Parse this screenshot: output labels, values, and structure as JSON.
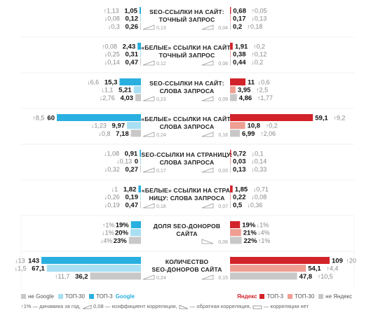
{
  "colors": {
    "google_top3": "#2ab0e0",
    "google_top30": "#a8dff2",
    "google_not": "#c8c8c8",
    "yandex_top3": "#d2232a",
    "yandex_top30": "#ef9e92",
    "yandex_not": "#c8c8c8",
    "up": "#888888",
    "down": "#888888"
  },
  "chart_data": {
    "type": "bar",
    "layout": "mirrored-horizontal",
    "engines": [
      "Google",
      "Яндекс"
    ],
    "series": [
      "ТОП-3",
      "ТОП-30",
      "не Google / не Яндекс"
    ],
    "groups": [
      {
        "label": "SEO-ССЫЛКИ НА САЙТ:\nТОЧНЫЙ ЗАПРОС",
        "google": [
          {
            "value": 1.05,
            "value_label": "1,05",
            "delta": "1,13",
            "dir": "up"
          },
          {
            "value": 0.12,
            "value_label": "0,12",
            "delta": "0,08",
            "dir": "down"
          },
          {
            "value": 0.26,
            "value_label": "0,26",
            "delta": "0,3",
            "dir": "down"
          }
        ],
        "yandex": [
          {
            "value": 0.68,
            "value_label": "0,68",
            "delta": "0,05",
            "dir": "up"
          },
          {
            "value": 0.17,
            "value_label": "0,17",
            "delta": "0,13",
            "dir": "down"
          },
          {
            "value": 0.2,
            "value_label": "0,2",
            "delta": "0,18",
            "dir": "up"
          }
        ],
        "corr_google": "0,13",
        "corr_yandex": "0,04",
        "icon_google": "positive",
        "icon_yandex": "positive"
      },
      {
        "label": "«БЕЛЫЕ» ССЫЛКИ НА САЙТ:\nТОЧНЫЙ ЗАПРОС",
        "google": [
          {
            "value": 2.43,
            "value_label": "2,43",
            "delta": "0,08",
            "dir": "up"
          },
          {
            "value": 0.31,
            "value_label": "0,31",
            "delta": "0,25",
            "dir": "down"
          },
          {
            "value": 0.47,
            "value_label": "0,47",
            "delta": "0,14",
            "dir": "down"
          }
        ],
        "yandex": [
          {
            "value": 1.91,
            "value_label": "1,91",
            "delta": "0,2",
            "dir": "up"
          },
          {
            "value": 0.38,
            "value_label": "0,38",
            "delta": "0,12",
            "dir": "up"
          },
          {
            "value": 0.44,
            "value_label": "0,44",
            "delta": "0,2",
            "dir": "down"
          }
        ],
        "corr_google": "0,12",
        "corr_yandex": "0,08",
        "icon_google": "positive",
        "icon_yandex": "positive"
      },
      {
        "label": "SEO-ССЫЛКИ НА САЙТ:\nСЛОВА ЗАПРОСА",
        "google": [
          {
            "value": 15.3,
            "value_label": "15,3",
            "delta": "6,6",
            "dir": "down"
          },
          {
            "value": 5.21,
            "value_label": "5,21",
            "delta": "1,1",
            "dir": "down"
          },
          {
            "value": 4.03,
            "value_label": "4,03",
            "delta": "2,76",
            "dir": "down"
          }
        ],
        "yandex": [
          {
            "value": 11,
            "value_label": "11",
            "delta": "0,6",
            "dir": "down"
          },
          {
            "value": 3.95,
            "value_label": "3,95",
            "delta": "2,5",
            "dir": "up"
          },
          {
            "value": 4.86,
            "value_label": "4,86",
            "delta": "1,77",
            "dir": "up"
          }
        ],
        "corr_google": "0,23",
        "corr_yandex": "0,09",
        "icon_google": "positive",
        "icon_yandex": "positive"
      },
      {
        "label": "«БЕЛЫЕ» ССЫЛКИ НА САЙТ:\nСЛОВА ЗАПРОСА",
        "google": [
          {
            "value": 60,
            "value_label": "60",
            "delta": "8,5",
            "dir": "up"
          },
          {
            "value": 9.97,
            "value_label": "9,97",
            "delta": "1,23",
            "dir": "down"
          },
          {
            "value": 7.18,
            "value_label": "7,18",
            "delta": "0,8",
            "dir": "down"
          }
        ],
        "yandex": [
          {
            "value": 59.1,
            "value_label": "59,1",
            "delta": "9,2",
            "dir": "up"
          },
          {
            "value": 10.8,
            "value_label": "10,8",
            "delta": "0,2",
            "dir": "up"
          },
          {
            "value": 6.99,
            "value_label": "6,99",
            "delta": "2,06",
            "dir": "up"
          }
        ],
        "corr_google": "0,24",
        "corr_yandex": "0,16",
        "icon_google": "positive",
        "icon_yandex": "positive"
      },
      {
        "label": "SEO-ССЫЛКИ НА СТРАНИЦУ:\nСЛОВА ЗАПРОСА",
        "google": [
          {
            "value": 0.91,
            "value_label": "0,91",
            "delta": "1,08",
            "dir": "down"
          },
          {
            "value": 0,
            "value_label": "0",
            "delta": "0,13",
            "dir": "down"
          },
          {
            "value": 0.27,
            "value_label": "0,27",
            "delta": "0,32",
            "dir": "down"
          }
        ],
        "yandex": [
          {
            "value": 0.72,
            "value_label": "0,72",
            "delta": "0,1",
            "dir": "down"
          },
          {
            "value": 0.03,
            "value_label": "0,03",
            "delta": "0,14",
            "dir": "down"
          },
          {
            "value": 0.13,
            "value_label": "0,13",
            "delta": "0,33",
            "dir": "down"
          }
        ],
        "corr_google": "0,17",
        "corr_yandex": "0,03",
        "icon_google": "positive",
        "icon_yandex": "positive"
      },
      {
        "label": "«БЕЛЫЕ» ССЫЛКИ НА СТРА-\nНИЦУ: СЛОВА ЗАПРОСА",
        "google": [
          {
            "value": 1.82,
            "value_label": "1,82",
            "delta": "1",
            "dir": "down"
          },
          {
            "value": 0.19,
            "value_label": "0,19",
            "delta": "0,26",
            "dir": "down"
          },
          {
            "value": 0.47,
            "value_label": "0,47",
            "delta": "0,19",
            "dir": "down"
          }
        ],
        "yandex": [
          {
            "value": 1.85,
            "value_label": "1,85",
            "delta": "0,71",
            "dir": "down"
          },
          {
            "value": 0.22,
            "value_label": "0,22",
            "delta": "0,08",
            "dir": "down"
          },
          {
            "value": 0.5,
            "value_label": "0,5",
            "delta": "0,36",
            "dir": "down"
          }
        ],
        "corr_google": "0,18",
        "corr_yandex": "0,07",
        "icon_google": "positive",
        "icon_yandex": "positive"
      },
      {
        "label": "ДОЛЯ SEO-ДОНОРОВ\nСАЙТА",
        "google": [
          {
            "value": 19,
            "value_label": "19%",
            "delta": "1%",
            "dir": "up"
          },
          {
            "value": 20,
            "value_label": "20%",
            "delta": "1%",
            "dir": "down"
          },
          {
            "value": 23,
            "value_label": "23%",
            "delta": "4%",
            "dir": "down"
          }
        ],
        "yandex": [
          {
            "value": 19,
            "value_label": "19%",
            "delta": "1%",
            "dir": "down"
          },
          {
            "value": 21,
            "value_label": "21%",
            "delta": "4%",
            "dir": "down"
          },
          {
            "value": 22,
            "value_label": "22%",
            "delta": "1%",
            "dir": "up"
          }
        ],
        "corr_google": "",
        "corr_yandex": "0,06",
        "icon_google": "none",
        "icon_yandex": "negative"
      },
      {
        "label": "КОЛИЧЕСТВО\nSEO-ДОНОРОВ САЙТА",
        "google": [
          {
            "value": 143,
            "value_label": "143",
            "delta": "13",
            "dir": "down"
          },
          {
            "value": 67.1,
            "value_label": "67,1",
            "delta": "1,5",
            "dir": "down"
          },
          {
            "value": 36.2,
            "value_label": "36,2",
            "delta": "11,7",
            "dir": "up"
          }
        ],
        "yandex": [
          {
            "value": 109,
            "value_label": "109",
            "delta": "20",
            "dir": "up"
          },
          {
            "value": 54.1,
            "value_label": "54,1",
            "delta": "4,4",
            "dir": "up"
          },
          {
            "value": 47.8,
            "value_label": "47,8",
            "delta": "10,5",
            "dir": "up"
          }
        ],
        "corr_google": "0,24",
        "corr_yandex": "0,15",
        "icon_google": "positive",
        "icon_yandex": "positive"
      }
    ]
  },
  "legend": {
    "google_not": "не Google",
    "top30": "ТОП-30",
    "top3": "ТОП-3",
    "google": "Google",
    "yandex": "Яндекс",
    "yandex_not": "не Яндекс"
  },
  "footnote": {
    "delta_example": "↑1%",
    "delta_text": " — динамика за год, ",
    "corr_example": "0,08",
    "corr_text": " — коэффициент корреляции, ",
    "neg_text": " — обратная корреляция, ",
    "none_text": " — корреляции нет"
  }
}
